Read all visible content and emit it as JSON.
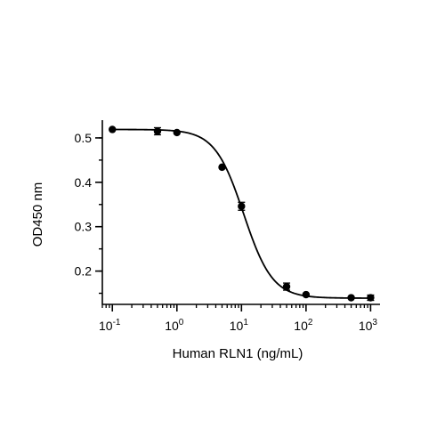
{
  "chart_data": {
    "type": "scatter",
    "title": "",
    "xlabel": "Human RLN1 (ng/mL)",
    "ylabel": "OD450 nm",
    "x_scale": "log10",
    "xlim": [
      0.07,
      1400
    ],
    "ylim": [
      0.125,
      0.54
    ],
    "x_ticks": [
      {
        "value": 0.1,
        "base": "10",
        "exp": "-1"
      },
      {
        "value": 1,
        "base": "10",
        "exp": "0"
      },
      {
        "value": 10,
        "base": "10",
        "exp": "1"
      },
      {
        "value": 100,
        "base": "10",
        "exp": "2"
      },
      {
        "value": 1000,
        "base": "10",
        "exp": "3"
      }
    ],
    "y_ticks": [
      {
        "value": 0.2,
        "label": "0.2"
      },
      {
        "value": 0.3,
        "label": "0.3"
      },
      {
        "value": 0.4,
        "label": "0.4"
      },
      {
        "value": 0.5,
        "label": "0.5"
      }
    ],
    "grid": false,
    "legend": "none",
    "colors": {
      "marker": "#000000",
      "line": "#000000",
      "axis": "#000000"
    },
    "series": [
      {
        "points": [
          {
            "x": 0.1,
            "y": 0.519,
            "err": 0.0
          },
          {
            "x": 0.5,
            "y": 0.515,
            "err": 0.008
          },
          {
            "x": 1.0,
            "y": 0.512,
            "err": 0.0
          },
          {
            "x": 5.0,
            "y": 0.434,
            "err": 0.0
          },
          {
            "x": 10.0,
            "y": 0.346,
            "err": 0.009
          },
          {
            "x": 50.0,
            "y": 0.165,
            "err": 0.008
          },
          {
            "x": 100.0,
            "y": 0.147,
            "err": 0.0
          },
          {
            "x": 500.0,
            "y": 0.14,
            "err": 0.0
          },
          {
            "x": 1000.0,
            "y": 0.14,
            "err": 0.006
          }
        ],
        "fit": {
          "model": "4PL",
          "top": 0.519,
          "bottom": 0.139,
          "ec50": 10.8,
          "hill": 1.95
        }
      }
    ]
  }
}
